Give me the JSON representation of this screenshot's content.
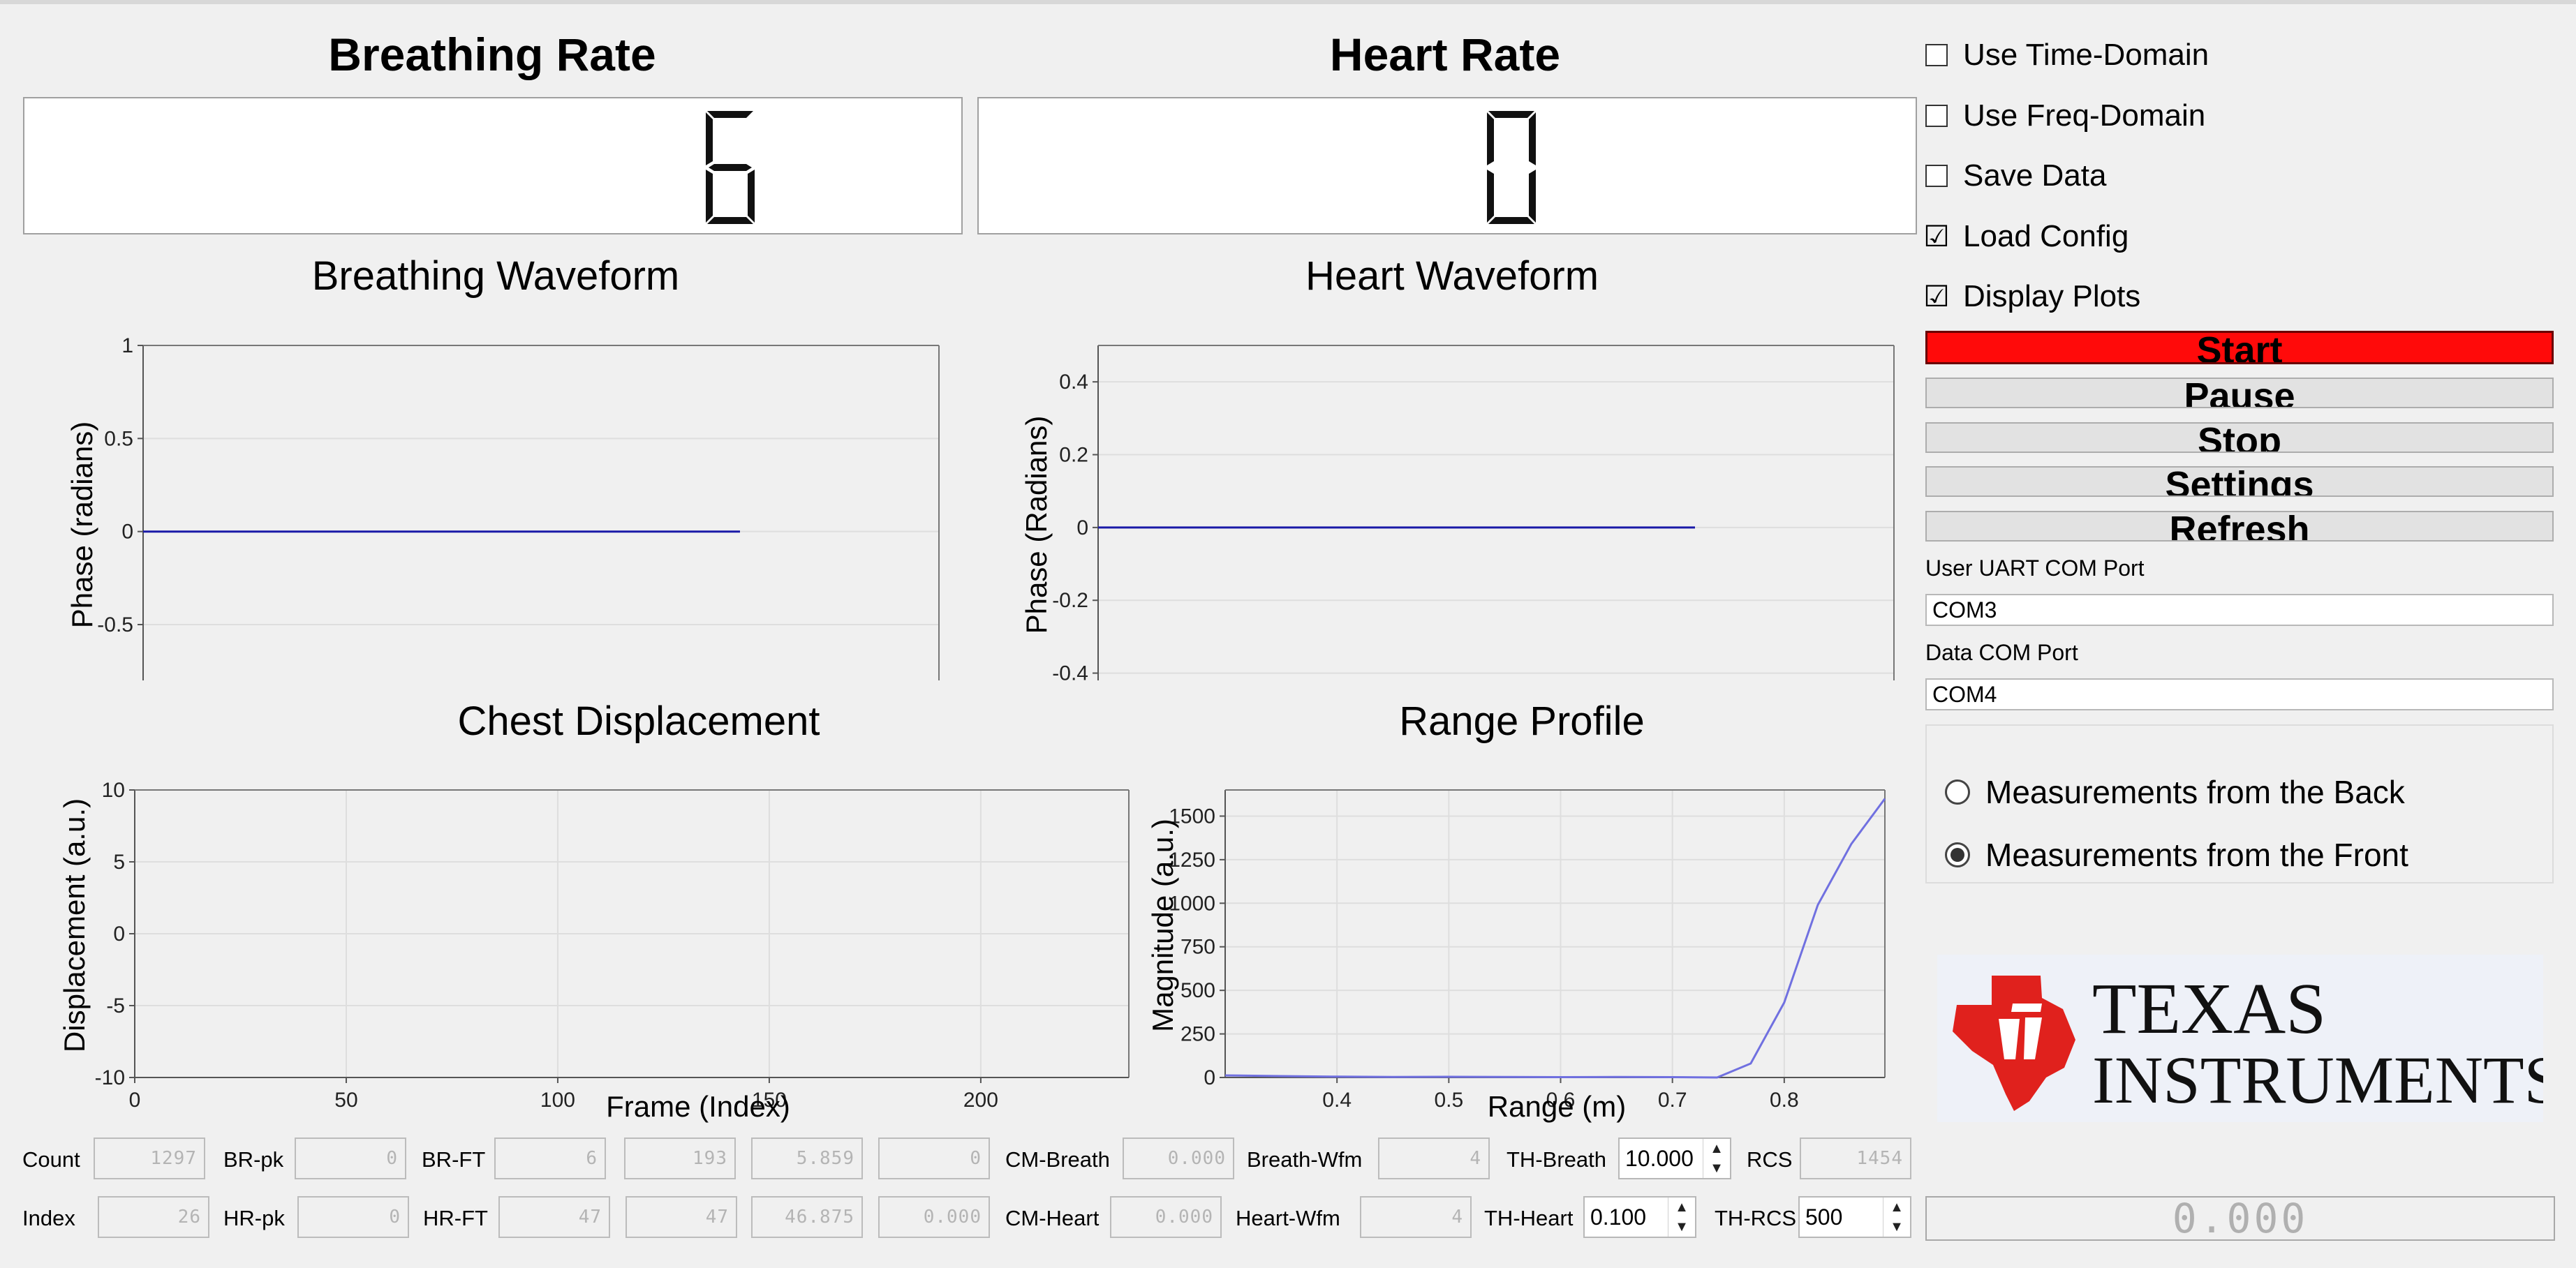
{
  "breathing_rate": {
    "title": "Breathing Rate",
    "value": "6"
  },
  "heart_rate": {
    "title": "Heart Rate",
    "value": "0"
  },
  "plots": {
    "breathing_waveform": {
      "title": "Breathing Waveform",
      "ylabel": "Phase (radians)",
      "yticks": [
        "1",
        "0.5",
        "0",
        "-0.5"
      ]
    },
    "heart_waveform": {
      "title": "Heart Waveform",
      "ylabel": "Phase (Radians)",
      "yticks": [
        "0.4",
        "0.2",
        "0",
        "-0.2",
        "-0.4"
      ]
    },
    "chest_displacement": {
      "title": "Chest Displacement",
      "ylabel": "Displacement (a.u.)",
      "xlabel": "Frame (Index)",
      "yticks": [
        "10",
        "5",
        "0",
        "-5",
        "-10"
      ],
      "xticks": [
        "0",
        "50",
        "100",
        "150",
        "200"
      ]
    },
    "range_profile": {
      "title": "Range Profile",
      "ylabel": "Magnitude (a.u.)",
      "xlabel": "Range (m)",
      "yticks": [
        "1500",
        "1250",
        "1000",
        "750",
        "500",
        "250",
        "0"
      ],
      "xticks": [
        "0.4",
        "0.5",
        "0.6",
        "0.7",
        "0.8"
      ]
    }
  },
  "chart_data": [
    {
      "type": "line",
      "title": "Breathing Waveform",
      "ylabel": "Phase (radians)",
      "ylim": [
        -0.8,
        1
      ],
      "series": [
        {
          "x": [
            0,
            0.75
          ],
          "values": [
            0,
            0
          ],
          "color": "#1a1aa8"
        }
      ]
    },
    {
      "type": "line",
      "title": "Heart Waveform",
      "ylabel": "Phase (Radians)",
      "ylim": [
        -0.42,
        0.5
      ],
      "series": [
        {
          "x": [
            0,
            0.75
          ],
          "values": [
            0,
            0
          ],
          "color": "#1a1aa8"
        }
      ]
    },
    {
      "type": "line",
      "title": "Chest Displacement",
      "xlabel": "Frame (Index)",
      "ylabel": "Displacement (a.u.)",
      "xlim": [
        0,
        235
      ],
      "ylim": [
        -10,
        10
      ],
      "series": []
    },
    {
      "type": "line",
      "title": "Range Profile",
      "xlabel": "Range (m)",
      "ylabel": "Magnitude (a.u.)",
      "xlim": [
        0.3,
        0.89
      ],
      "ylim": [
        0,
        1650
      ],
      "grid": true,
      "series": [
        {
          "x": [
            0.3,
            0.35,
            0.4,
            0.45,
            0.5,
            0.55,
            0.6,
            0.65,
            0.7,
            0.74,
            0.77,
            0.8,
            0.83,
            0.86,
            0.89
          ],
          "values": [
            12,
            8,
            5,
            3,
            4,
            3,
            2,
            3,
            2,
            0,
            80,
            430,
            990,
            1340,
            1600
          ],
          "color": "#7070e0"
        }
      ]
    }
  ],
  "options": {
    "use_time_domain": {
      "label": "Use Time-Domain",
      "checked": false
    },
    "use_freq_domain": {
      "label": "Use Freq-Domain",
      "checked": false
    },
    "save_data": {
      "label": "Save Data",
      "checked": false
    },
    "load_config": {
      "label": "Load Config",
      "checked": true
    },
    "display_plots": {
      "label": "Display Plots",
      "checked": true
    },
    "check_mark": "☑",
    "check_empty": ""
  },
  "buttons": {
    "start": "Start",
    "pause": "Pause",
    "stop": "Stop",
    "settings": "Settings",
    "refresh": "Refresh",
    "start_color": "#ff0a0a"
  },
  "ports": {
    "uart_label": "User UART COM Port",
    "uart_value": "COM3",
    "data_label": "Data COM Port",
    "data_value": "COM4"
  },
  "measurement": {
    "back": "Measurements from the Back",
    "front": "Measurements from the Front",
    "selected": "front"
  },
  "logo": {
    "line1": "TEXAS",
    "line2": "INSTRUMENTS",
    "brand_color": "#e0211d"
  },
  "fields_row1": {
    "count_label": "Count",
    "count": "1297",
    "brpk_label": "BR-pk",
    "brpk": "0",
    "brft_label": "BR-FT",
    "brft": "6",
    "brft2": "193",
    "brft3": "5.859",
    "brft4": "0",
    "cmbreath_label": "CM-Breath",
    "cmbreath": "0.000",
    "breathwfm_label": "Breath-Wfm",
    "breathwfm": "4",
    "thbreath_label": "TH-Breath",
    "thbreath": "10.000",
    "rcs_label": "RCS",
    "rcs": "1454"
  },
  "fields_row2": {
    "index_label": "Index",
    "index": "26",
    "hrpk_label": "HR-pk",
    "hrpk": "0",
    "hrft_label": "HR-FT",
    "hrft": "47",
    "hrft2": "47",
    "hrft3": "46.875",
    "hrft4": "0.000",
    "cmheart_label": "CM-Heart",
    "cmheart": "0.000",
    "heartwfm_label": "Heart-Wfm",
    "heartwfm": "4",
    "thheart_label": "TH-Heart",
    "thheart": "0.100",
    "thrcs_label": "TH-RCS",
    "thrcs": "500"
  },
  "status_value": "0.000"
}
